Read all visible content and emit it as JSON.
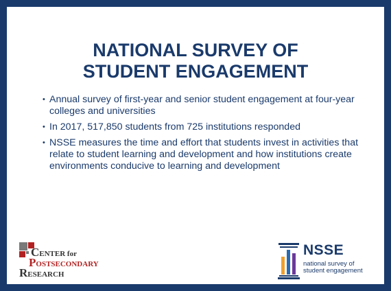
{
  "slide": {
    "title_line1": "NATIONAL SURVEY OF",
    "title_line2": "STUDENT ENGAGEMENT",
    "bullets": [
      "Annual survey of first-year and senior student engagement at four-year colleges and universities",
      "In 2017, 517,850 students from 725 institutions responded",
      "NSSE measures the time and effort that students invest in activities that relate to student learning and development and how institutions create environments conducive to learning and development"
    ]
  },
  "logos": {
    "cpr": {
      "line1_cap": "C",
      "line1_rest": "ENTER for",
      "line2_cap": "P",
      "line2_rest": "OSTSECONDARY",
      "line3_cap": "R",
      "line3_rest": "ESEARCH"
    },
    "nsse": {
      "wordmark": "NSSE",
      "tagline_line1": "national survey of",
      "tagline_line2": "student engagement"
    }
  },
  "colors": {
    "frame": "#1a3a6b",
    "text": "#1a3a6b",
    "cpr_red": "#b22222",
    "cpr_gray": "#7a7a7a",
    "nsse_orange": "#f0a030",
    "nsse_blue": "#2a6ab0",
    "nsse_purple": "#6a3a9a"
  }
}
